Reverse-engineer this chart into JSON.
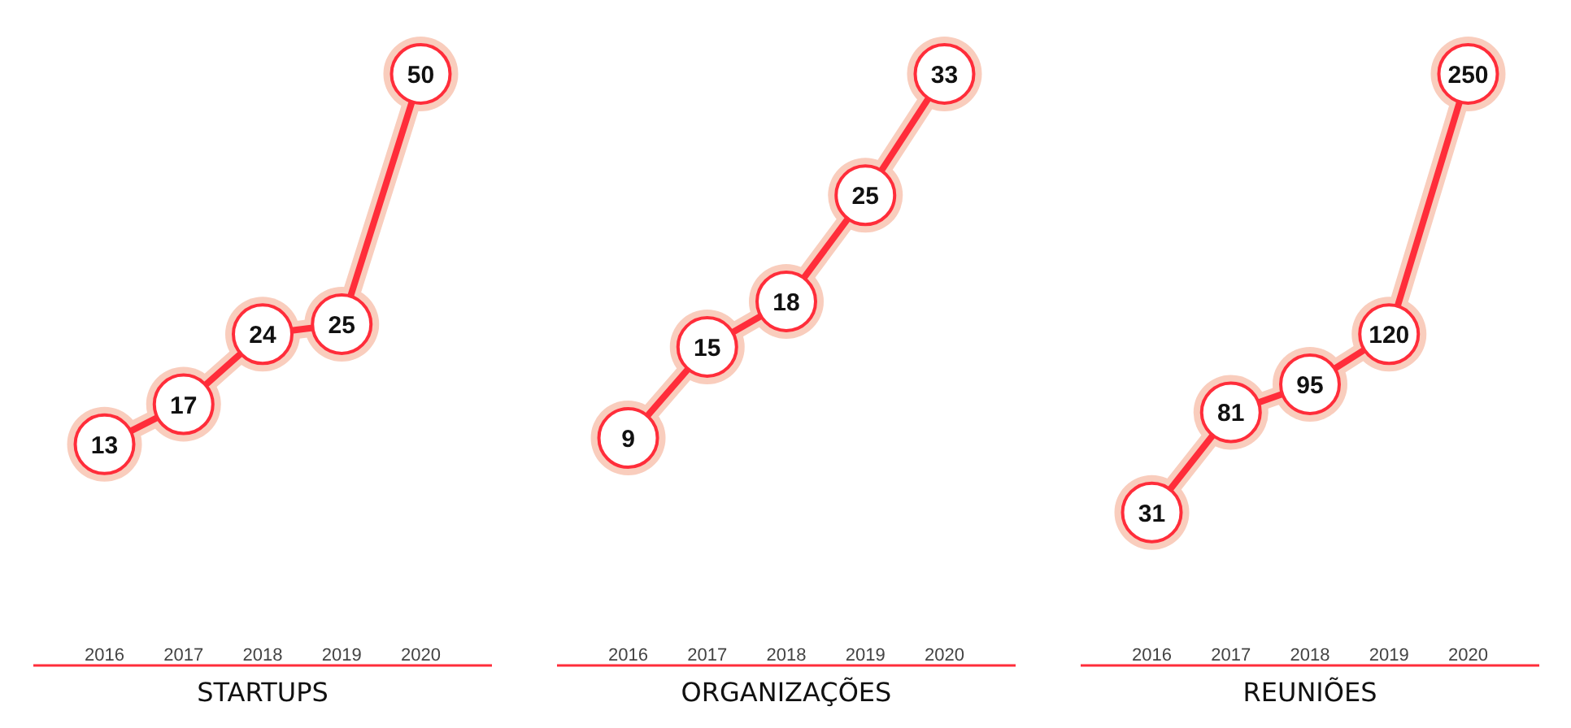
{
  "chart_data": [
    {
      "type": "line",
      "title": "STARTUPS",
      "categories": [
        "2016",
        "2017",
        "2018",
        "2019",
        "2020"
      ],
      "values": [
        13,
        17,
        24,
        25,
        50
      ],
      "color": "#ff2d3a",
      "data_labels": true,
      "marker": "circle"
    },
    {
      "type": "line",
      "title": "ORGANIZAÇÕES",
      "categories": [
        "2016",
        "2017",
        "2018",
        "2019",
        "2020"
      ],
      "values": [
        9,
        15,
        18,
        25,
        33
      ],
      "color": "#ff2d3a",
      "data_labels": true,
      "marker": "circle"
    },
    {
      "type": "line",
      "title": "REUNIÕES",
      "categories": [
        "2016",
        "2017",
        "2018",
        "2019",
        "2020"
      ],
      "values": [
        31,
        81,
        95,
        120,
        250
      ],
      "color": "#ff2d3a",
      "data_labels": true,
      "marker": "circle"
    }
  ]
}
